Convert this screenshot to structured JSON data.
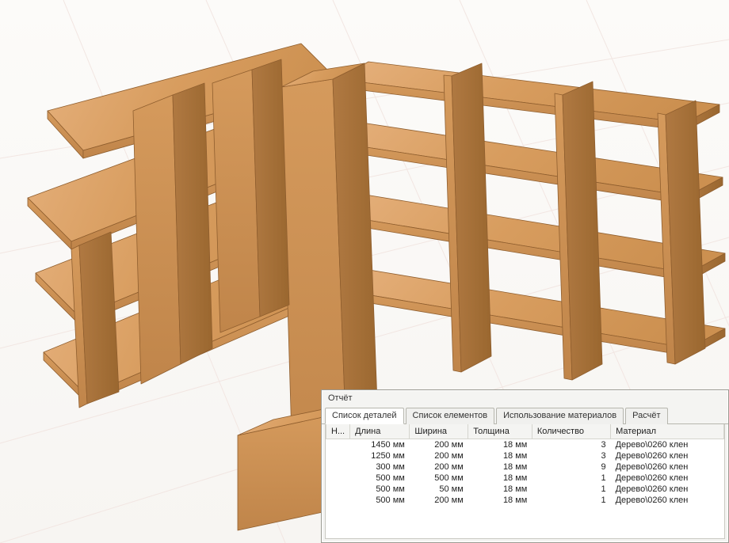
{
  "panel": {
    "title": "Отчёт",
    "tabs": [
      {
        "label": "Список деталей",
        "active": true
      },
      {
        "label": "Список елементов",
        "active": false
      },
      {
        "label": "Использование материалов",
        "active": false
      },
      {
        "label": "Расчёт",
        "active": false
      }
    ],
    "columns": {
      "num": "Н...",
      "length": "Длина",
      "width": "Ширина",
      "thickness": "Толщина",
      "quantity": "Количество",
      "material": "Материал"
    },
    "rows": [
      {
        "length": "1450 мм",
        "width": "200 мм",
        "thickness": "18 мм",
        "quantity": "3",
        "material": "Дерево\\0260 клен"
      },
      {
        "length": "1250 мм",
        "width": "200 мм",
        "thickness": "18 мм",
        "quantity": "3",
        "material": "Дерево\\0260 клен"
      },
      {
        "length": "300 мм",
        "width": "200 мм",
        "thickness": "18 мм",
        "quantity": "9",
        "material": "Дерево\\0260 клен"
      },
      {
        "length": "500 мм",
        "width": "500 мм",
        "thickness": "18 мм",
        "quantity": "1",
        "material": "Дерево\\0260 клен"
      },
      {
        "length": "500 мм",
        "width": "50 мм",
        "thickness": "18 мм",
        "quantity": "1",
        "material": "Дерево\\0260 клен"
      },
      {
        "length": "500 мм",
        "width": "200 мм",
        "thickness": "18 мм",
        "quantity": "1",
        "material": "Дерево\\0260 клен"
      }
    ]
  },
  "viewport": {
    "bg_top": "#fcfbf9",
    "bg_bottom": "#f7f5f2",
    "grid_color": "#f2e6e2",
    "axis_color_x": "#d97070",
    "axis_color_z": "#7094d9",
    "wood_light": "#e0a871",
    "wood_mid": "#d29559",
    "wood_dark": "#b47a42",
    "wood_edge": "#8f5e2e"
  }
}
